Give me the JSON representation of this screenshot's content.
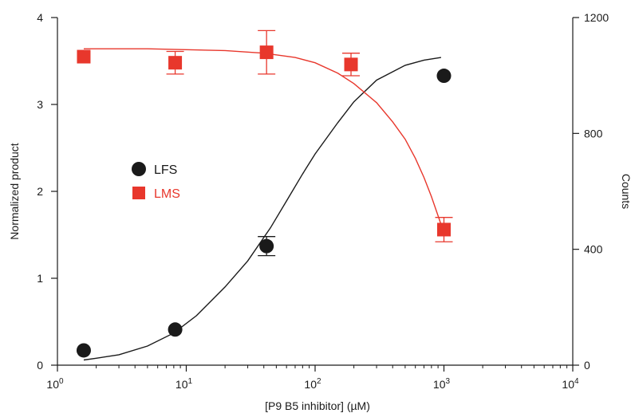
{
  "chart_data": {
    "type": "scatter",
    "title": "",
    "xlabel": "[P9 B5 inhibitor] (µM)",
    "ylabel_left": "Normalized product",
    "ylabel_right": "Counts",
    "x_scale": "log",
    "xlim": [
      1,
      10000
    ],
    "ylim_left": [
      0,
      4
    ],
    "ylim_right": [
      0,
      1200
    ],
    "x_ticks": [
      {
        "value": 1,
        "base": "10",
        "exp": "0"
      },
      {
        "value": 10,
        "base": "10",
        "exp": "1"
      },
      {
        "value": 100,
        "base": "10",
        "exp": "2"
      },
      {
        "value": 1000,
        "base": "10",
        "exp": "3"
      },
      {
        "value": 10000,
        "base": "10",
        "exp": "4"
      }
    ],
    "y_ticks_left": [
      0,
      1,
      2,
      3,
      4
    ],
    "y_ticks_right": [
      0,
      400,
      800,
      1200
    ],
    "grid": false,
    "legend_position": "center-left",
    "series": [
      {
        "name": "LFS",
        "marker": "circle",
        "color": "#1a1a1a",
        "axis": "left",
        "points": [
          {
            "x": 1.6,
            "y": 0.17,
            "err": 0
          },
          {
            "x": 8.2,
            "y": 0.41,
            "err": 0
          },
          {
            "x": 42,
            "y": 1.37,
            "err": 0.11
          },
          {
            "x": 1000,
            "y": 3.33,
            "err": 0
          }
        ],
        "fit": [
          [
            1.6,
            0.06
          ],
          [
            2,
            0.08
          ],
          [
            3,
            0.12
          ],
          [
            5,
            0.22
          ],
          [
            8,
            0.37
          ],
          [
            12,
            0.57
          ],
          [
            20,
            0.9
          ],
          [
            30,
            1.2
          ],
          [
            45,
            1.58
          ],
          [
            60,
            1.89
          ],
          [
            80,
            2.2
          ],
          [
            100,
            2.43
          ],
          [
            150,
            2.79
          ],
          [
            200,
            3.03
          ],
          [
            300,
            3.28
          ],
          [
            500,
            3.45
          ],
          [
            700,
            3.51
          ],
          [
            950,
            3.54
          ]
        ]
      },
      {
        "name": "LMS",
        "marker": "square",
        "color": "#e8372c",
        "axis": "left",
        "points": [
          {
            "x": 1.6,
            "y": 3.55,
            "err": 0
          },
          {
            "x": 8.2,
            "y": 3.48,
            "err": 0.13
          },
          {
            "x": 42,
            "y": 3.6,
            "err": 0.25
          },
          {
            "x": 190,
            "y": 3.46,
            "err": 0.13
          },
          {
            "x": 1000,
            "y": 1.56,
            "err": 0.14
          }
        ],
        "fit": [
          [
            1.6,
            3.64
          ],
          [
            5,
            3.64
          ],
          [
            10,
            3.63
          ],
          [
            20,
            3.62
          ],
          [
            40,
            3.59
          ],
          [
            70,
            3.54
          ],
          [
            100,
            3.48
          ],
          [
            150,
            3.36
          ],
          [
            200,
            3.24
          ],
          [
            300,
            3.02
          ],
          [
            400,
            2.8
          ],
          [
            500,
            2.6
          ],
          [
            600,
            2.38
          ],
          [
            700,
            2.16
          ],
          [
            800,
            1.94
          ],
          [
            900,
            1.72
          ],
          [
            960,
            1.6
          ]
        ]
      }
    ]
  }
}
